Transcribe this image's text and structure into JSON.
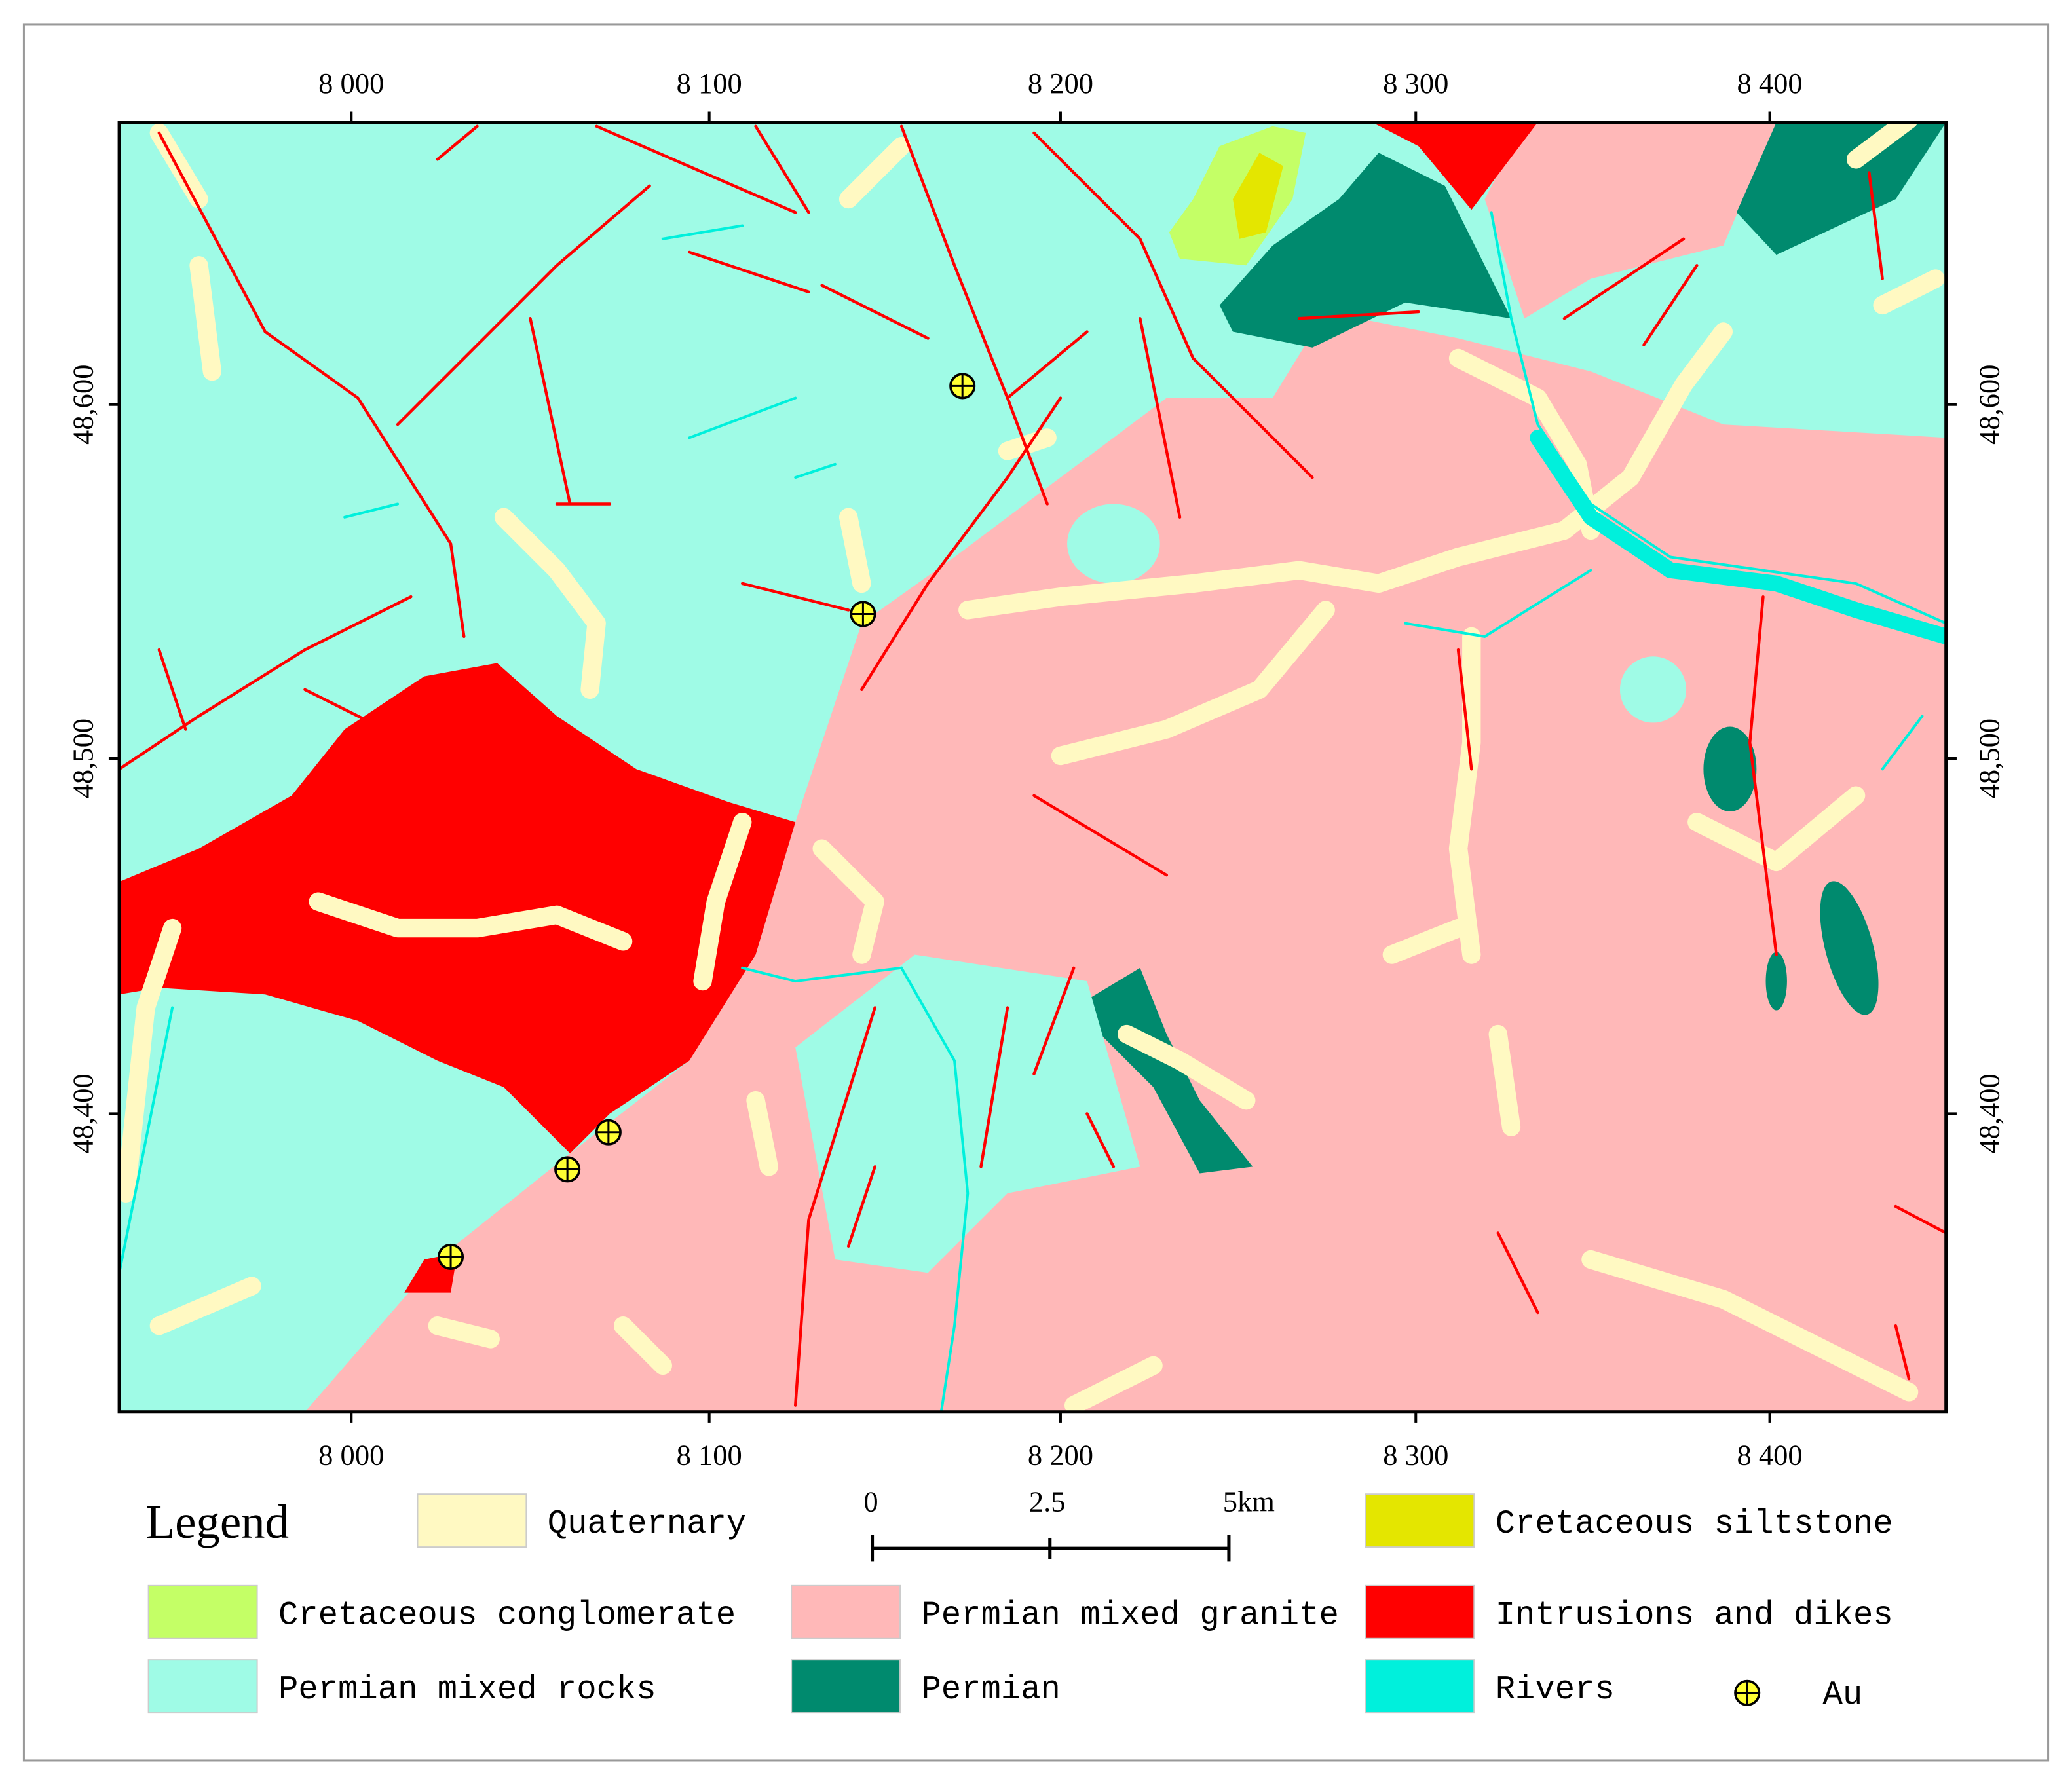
{
  "map": {
    "x_axis_labels": [
      "8 000",
      "8 100",
      "8 200",
      "8 300",
      "8 400"
    ],
    "y_axis_labels": [
      "48,600",
      "48,500",
      "48,400"
    ],
    "legend": {
      "title": "Legend",
      "items": [
        {
          "label": "Quaternary",
          "color": "#fff9c2"
        },
        {
          "label": "Cretaceous siltstone",
          "color": "#e4e600"
        },
        {
          "label": "Cretaceous conglomerate",
          "color": "#c4ff66"
        },
        {
          "label": "Permian mixed granite",
          "color": "#ffb8b8"
        },
        {
          "label": "Intrusions and dikes",
          "color": "#ff0000"
        },
        {
          "label": "Permian mixed rocks",
          "color": "#9ffbe6"
        },
        {
          "label": "Permian",
          "color": "#008a6e"
        },
        {
          "label": "Rivers",
          "color": "#00f0dc"
        }
      ],
      "au_label": "Au"
    },
    "scale_bar": {
      "labels": [
        "0",
        "2.5",
        "5km"
      ]
    }
  }
}
